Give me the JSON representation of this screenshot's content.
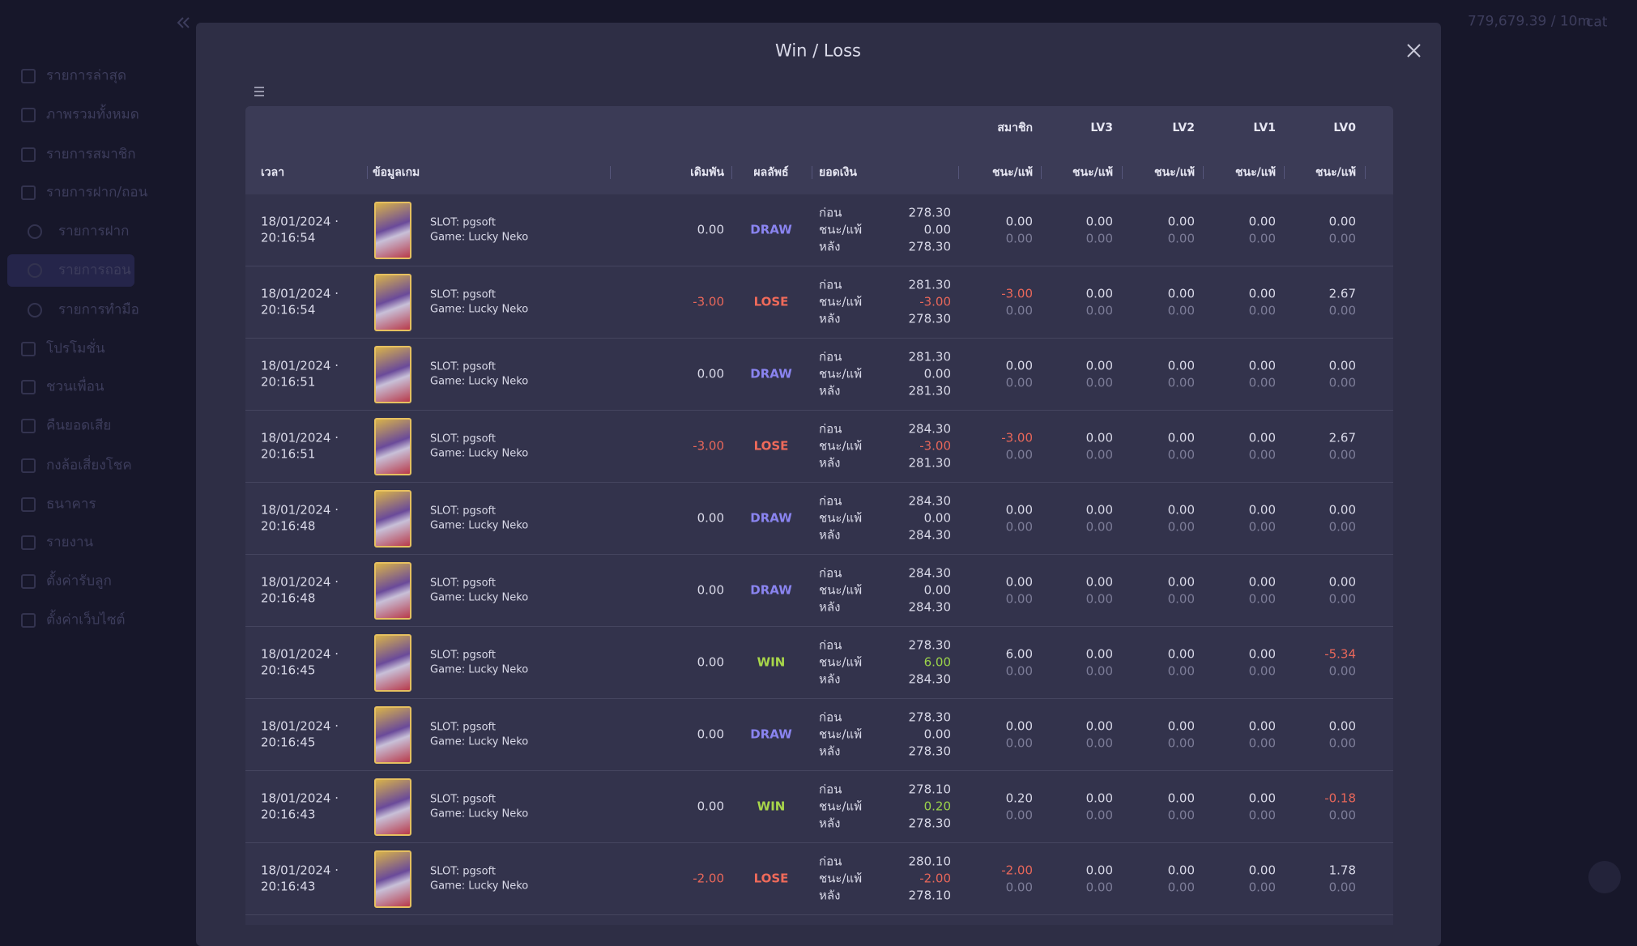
{
  "sidebar": {
    "items": [
      "รายการล่าสุด",
      "ภาพรวมทั้งหมด",
      "รายการสมาชิก",
      "รายการฝาก/ถอน",
      "รายการฝาก",
      "รายการถอน",
      "รายการทำมือ",
      "โปรโมชั่น",
      "ชวนเพื่อน",
      "คืนยอดเสีย",
      "กงล้อเสี่ยงโชค",
      "ธนาคาร",
      "รายงาน",
      "ตั้งค่ารับลูก",
      "ตั้งค่าเว็บไซต์"
    ]
  },
  "topbar": {
    "credit": "779,679.39 / 10m",
    "user": "cat"
  },
  "modal": {
    "title": "Win / Loss",
    "group_headers": [
      "สมาชิก",
      "LV3",
      "LV2",
      "LV1",
      "LV0"
    ],
    "headers": [
      "เวลา",
      "ข้อมูลเกม",
      "เดิมพัน",
      "ผลลัพธ์",
      "ยอดเงิน",
      "ชนะ/แพ้",
      "ชนะ/แพ้",
      "ชนะ/แพ้",
      "ชนะ/แพ้",
      "ชนะ/แพ้"
    ],
    "balance_labels": [
      "ก่อน",
      "ชนะ/แพ้",
      "หลัง"
    ],
    "rows": [
      {
        "date": "18/01/2024 ·",
        "time": "20:16:54",
        "provider": "SLOT: pgsoft",
        "game": "Game: Lucky Neko",
        "bet": "0.00",
        "result": "DRAW",
        "balance": [
          "278.30",
          "0.00",
          "278.30"
        ],
        "levels": [
          [
            "0.00",
            "0.00"
          ],
          [
            "0.00",
            "0.00"
          ],
          [
            "0.00",
            "0.00"
          ],
          [
            "0.00",
            "0.00"
          ],
          [
            "0.00",
            "0.00"
          ]
        ]
      },
      {
        "date": "18/01/2024 ·",
        "time": "20:16:54",
        "provider": "SLOT: pgsoft",
        "game": "Game: Lucky Neko",
        "bet": "-3.00",
        "result": "LOSE",
        "balance": [
          "281.30",
          "-3.00",
          "278.30"
        ],
        "levels": [
          [
            "-3.00",
            "0.00"
          ],
          [
            "0.00",
            "0.00"
          ],
          [
            "0.00",
            "0.00"
          ],
          [
            "0.00",
            "0.00"
          ],
          [
            "2.67",
            "0.00"
          ]
        ]
      },
      {
        "date": "18/01/2024 ·",
        "time": "20:16:51",
        "provider": "SLOT: pgsoft",
        "game": "Game: Lucky Neko",
        "bet": "0.00",
        "result": "DRAW",
        "balance": [
          "281.30",
          "0.00",
          "281.30"
        ],
        "levels": [
          [
            "0.00",
            "0.00"
          ],
          [
            "0.00",
            "0.00"
          ],
          [
            "0.00",
            "0.00"
          ],
          [
            "0.00",
            "0.00"
          ],
          [
            "0.00",
            "0.00"
          ]
        ]
      },
      {
        "date": "18/01/2024 ·",
        "time": "20:16:51",
        "provider": "SLOT: pgsoft",
        "game": "Game: Lucky Neko",
        "bet": "-3.00",
        "result": "LOSE",
        "balance": [
          "284.30",
          "-3.00",
          "281.30"
        ],
        "levels": [
          [
            "-3.00",
            "0.00"
          ],
          [
            "0.00",
            "0.00"
          ],
          [
            "0.00",
            "0.00"
          ],
          [
            "0.00",
            "0.00"
          ],
          [
            "2.67",
            "0.00"
          ]
        ]
      },
      {
        "date": "18/01/2024 ·",
        "time": "20:16:48",
        "provider": "SLOT: pgsoft",
        "game": "Game: Lucky Neko",
        "bet": "0.00",
        "result": "DRAW",
        "balance": [
          "284.30",
          "0.00",
          "284.30"
        ],
        "levels": [
          [
            "0.00",
            "0.00"
          ],
          [
            "0.00",
            "0.00"
          ],
          [
            "0.00",
            "0.00"
          ],
          [
            "0.00",
            "0.00"
          ],
          [
            "0.00",
            "0.00"
          ]
        ]
      },
      {
        "date": "18/01/2024 ·",
        "time": "20:16:48",
        "provider": "SLOT: pgsoft",
        "game": "Game: Lucky Neko",
        "bet": "0.00",
        "result": "DRAW",
        "balance": [
          "284.30",
          "0.00",
          "284.30"
        ],
        "levels": [
          [
            "0.00",
            "0.00"
          ],
          [
            "0.00",
            "0.00"
          ],
          [
            "0.00",
            "0.00"
          ],
          [
            "0.00",
            "0.00"
          ],
          [
            "0.00",
            "0.00"
          ]
        ]
      },
      {
        "date": "18/01/2024 ·",
        "time": "20:16:45",
        "provider": "SLOT: pgsoft",
        "game": "Game: Lucky Neko",
        "bet": "0.00",
        "result": "WIN",
        "balance": [
          "278.30",
          "6.00",
          "284.30"
        ],
        "levels": [
          [
            "6.00",
            "0.00"
          ],
          [
            "0.00",
            "0.00"
          ],
          [
            "0.00",
            "0.00"
          ],
          [
            "0.00",
            "0.00"
          ],
          [
            "-5.34",
            "0.00"
          ]
        ]
      },
      {
        "date": "18/01/2024 ·",
        "time": "20:16:45",
        "provider": "SLOT: pgsoft",
        "game": "Game: Lucky Neko",
        "bet": "0.00",
        "result": "DRAW",
        "balance": [
          "278.30",
          "0.00",
          "278.30"
        ],
        "levels": [
          [
            "0.00",
            "0.00"
          ],
          [
            "0.00",
            "0.00"
          ],
          [
            "0.00",
            "0.00"
          ],
          [
            "0.00",
            "0.00"
          ],
          [
            "0.00",
            "0.00"
          ]
        ]
      },
      {
        "date": "18/01/2024 ·",
        "time": "20:16:43",
        "provider": "SLOT: pgsoft",
        "game": "Game: Lucky Neko",
        "bet": "0.00",
        "result": "WIN",
        "balance": [
          "278.10",
          "0.20",
          "278.30"
        ],
        "levels": [
          [
            "0.20",
            "0.00"
          ],
          [
            "0.00",
            "0.00"
          ],
          [
            "0.00",
            "0.00"
          ],
          [
            "0.00",
            "0.00"
          ],
          [
            "-0.18",
            "0.00"
          ]
        ]
      },
      {
        "date": "18/01/2024 ·",
        "time": "20:16:43",
        "provider": "SLOT: pgsoft",
        "game": "Game: Lucky Neko",
        "bet": "-2.00",
        "result": "LOSE",
        "balance": [
          "280.10",
          "-2.00",
          "278.10"
        ],
        "levels": [
          [
            "-2.00",
            "0.00"
          ],
          [
            "0.00",
            "0.00"
          ],
          [
            "0.00",
            "0.00"
          ],
          [
            "0.00",
            "0.00"
          ],
          [
            "1.78",
            "0.00"
          ]
        ]
      }
    ]
  }
}
